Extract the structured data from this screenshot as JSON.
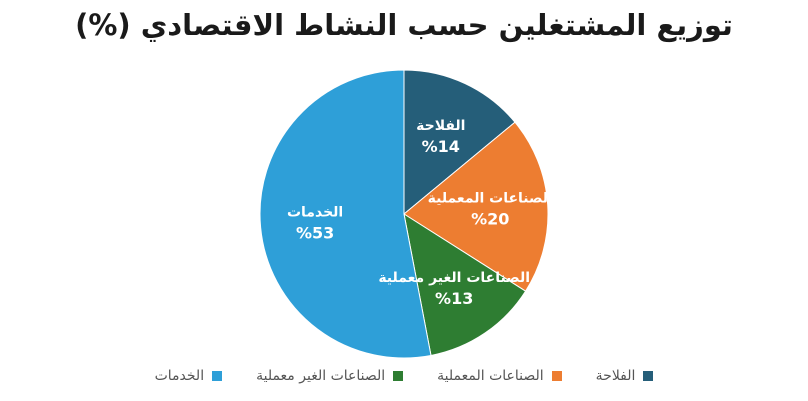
{
  "chart_data": {
    "type": "pie",
    "title": "توزيع المشتغلين حسب النشاط الاقتصادي (%)",
    "slices": [
      {
        "label": "الفلاحة",
        "value": 14,
        "display": "%14",
        "color": "#255e79"
      },
      {
        "label": "الصناعات المعملية",
        "value": 20,
        "display": "%20",
        "color": "#ed7d31"
      },
      {
        "label": "الصناعات الغير معملية",
        "value": 13,
        "display": "%13",
        "color": "#2e7d32"
      },
      {
        "label": "الخدمات",
        "value": 53,
        "display": "%53",
        "color": "#2e9fd8"
      }
    ],
    "legend_position": "bottom"
  }
}
